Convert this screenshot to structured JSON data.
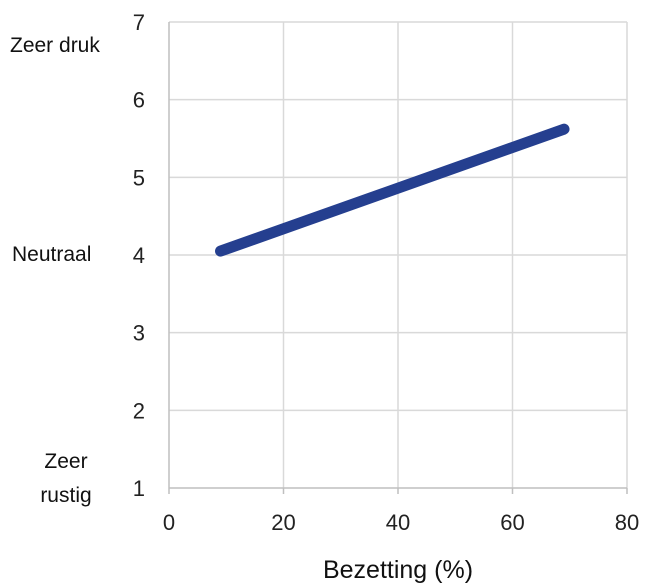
{
  "chart_data": {
    "type": "line",
    "title": "",
    "xlabel": "Bezetting (%)",
    "ylabel": "",
    "xlim": [
      0,
      80
    ],
    "ylim": [
      1,
      7
    ],
    "x_ticks": [
      "0",
      "20",
      "40",
      "60",
      "80"
    ],
    "y_ticks": [
      "1",
      "2",
      "3",
      "4",
      "5",
      "6",
      "7"
    ],
    "y_category_labels": {
      "top": "Zeer druk",
      "middle": "Neutraal",
      "bottom_line1": "Zeer",
      "bottom_line2": "rustig"
    },
    "grid": true,
    "series": [
      {
        "name": "",
        "color": "#253F8F",
        "x": [
          9,
          69
        ],
        "y": [
          4.05,
          5.62
        ]
      }
    ]
  }
}
